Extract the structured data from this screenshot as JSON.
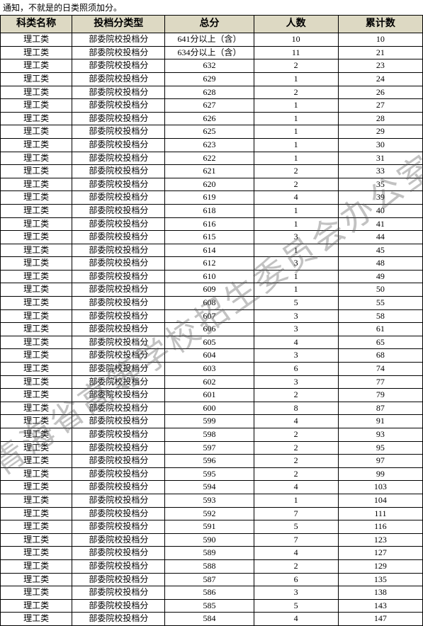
{
  "top_text": "通知，不就是的日类照须加分。",
  "watermark": "青海省高等学校招生委员会办公室",
  "table": {
    "headers": [
      "科类名称",
      "投档分类型",
      "总分",
      "人数",
      "累计数"
    ],
    "header_bg": "#ddd9c3",
    "border_color": "#000000",
    "col_widths": [
      "17%",
      "22%",
      "21%",
      "20%",
      "20%"
    ],
    "rows": [
      [
        "理工类",
        "部委院校投档分",
        "641分以上（含）",
        "10",
        "10"
      ],
      [
        "理工类",
        "部委院校投档分",
        "634分以上（含）",
        "11",
        "21"
      ],
      [
        "理工类",
        "部委院校投档分",
        "632",
        "2",
        "23"
      ],
      [
        "理工类",
        "部委院校投档分",
        "629",
        "1",
        "24"
      ],
      [
        "理工类",
        "部委院校投档分",
        "628",
        "2",
        "26"
      ],
      [
        "理工类",
        "部委院校投档分",
        "627",
        "1",
        "27"
      ],
      [
        "理工类",
        "部委院校投档分",
        "626",
        "1",
        "28"
      ],
      [
        "理工类",
        "部委院校投档分",
        "625",
        "1",
        "29"
      ],
      [
        "理工类",
        "部委院校投档分",
        "623",
        "1",
        "30"
      ],
      [
        "理工类",
        "部委院校投档分",
        "622",
        "1",
        "31"
      ],
      [
        "理工类",
        "部委院校投档分",
        "621",
        "2",
        "33"
      ],
      [
        "理工类",
        "部委院校投档分",
        "620",
        "2",
        "35"
      ],
      [
        "理工类",
        "部委院校投档分",
        "619",
        "4",
        "39"
      ],
      [
        "理工类",
        "部委院校投档分",
        "618",
        "1",
        "40"
      ],
      [
        "理工类",
        "部委院校投档分",
        "616",
        "1",
        "41"
      ],
      [
        "理工类",
        "部委院校投档分",
        "615",
        "3",
        "44"
      ],
      [
        "理工类",
        "部委院校投档分",
        "614",
        "1",
        "45"
      ],
      [
        "理工类",
        "部委院校投档分",
        "612",
        "3",
        "48"
      ],
      [
        "理工类",
        "部委院校投档分",
        "610",
        "1",
        "49"
      ],
      [
        "理工类",
        "部委院校投档分",
        "609",
        "1",
        "50"
      ],
      [
        "理工类",
        "部委院校投档分",
        "608",
        "5",
        "55"
      ],
      [
        "理工类",
        "部委院校投档分",
        "607",
        "3",
        "58"
      ],
      [
        "理工类",
        "部委院校投档分",
        "606",
        "3",
        "61"
      ],
      [
        "理工类",
        "部委院校投档分",
        "605",
        "4",
        "65"
      ],
      [
        "理工类",
        "部委院校投档分",
        "604",
        "3",
        "68"
      ],
      [
        "理工类",
        "部委院校投档分",
        "603",
        "6",
        "74"
      ],
      [
        "理工类",
        "部委院校投档分",
        "602",
        "3",
        "77"
      ],
      [
        "理工类",
        "部委院校投档分",
        "601",
        "2",
        "79"
      ],
      [
        "理工类",
        "部委院校投档分",
        "600",
        "8",
        "87"
      ],
      [
        "理工类",
        "部委院校投档分",
        "599",
        "4",
        "91"
      ],
      [
        "理工类",
        "部委院校投档分",
        "598",
        "2",
        "93"
      ],
      [
        "理工类",
        "部委院校投档分",
        "597",
        "2",
        "95"
      ],
      [
        "理工类",
        "部委院校投档分",
        "596",
        "2",
        "97"
      ],
      [
        "理工类",
        "部委院校投档分",
        "595",
        "2",
        "99"
      ],
      [
        "理工类",
        "部委院校投档分",
        "594",
        "4",
        "103"
      ],
      [
        "理工类",
        "部委院校投档分",
        "593",
        "1",
        "104"
      ],
      [
        "理工类",
        "部委院校投档分",
        "592",
        "7",
        "111"
      ],
      [
        "理工类",
        "部委院校投档分",
        "591",
        "5",
        "116"
      ],
      [
        "理工类",
        "部委院校投档分",
        "590",
        "7",
        "123"
      ],
      [
        "理工类",
        "部委院校投档分",
        "589",
        "4",
        "127"
      ],
      [
        "理工类",
        "部委院校投档分",
        "588",
        "2",
        "129"
      ],
      [
        "理工类",
        "部委院校投档分",
        "587",
        "6",
        "135"
      ],
      [
        "理工类",
        "部委院校投档分",
        "586",
        "3",
        "138"
      ],
      [
        "理工类",
        "部委院校投档分",
        "585",
        "5",
        "143"
      ],
      [
        "理工类",
        "部委院校投档分",
        "584",
        "4",
        "147"
      ]
    ]
  }
}
